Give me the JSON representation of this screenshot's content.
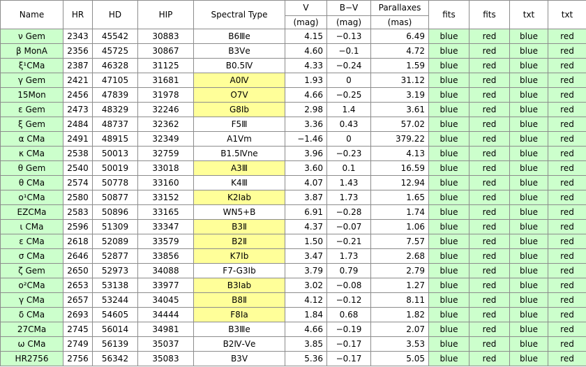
{
  "table": {
    "headers": [
      "Name",
      "HR",
      "HD",
      "HIP",
      "Spectral Type",
      "V",
      "B−V",
      "Parallaxes",
      "fits",
      "fits",
      "txt",
      "txt"
    ],
    "units": [
      "(mag)",
      "(mag)",
      "(mas)"
    ],
    "rows": [
      {
        "name": "ν Gem",
        "hr": "2343",
        "hd": "45542",
        "hip": "30883",
        "sp": "B6Ⅲe",
        "v": "4.15",
        "bv": "−0.13",
        "plx": "6.49",
        "c1": "blue",
        "c2": "red",
        "c3": "blue",
        "c4": "red",
        "hl": false
      },
      {
        "name": "β MonA",
        "hr": "2356",
        "hd": "45725",
        "hip": "30867",
        "sp": "B3Ⅴe",
        "v": "4.60",
        "bv": "−0.1",
        "plx": "4.72",
        "c1": "blue",
        "c2": "red",
        "c3": "blue",
        "c4": "red",
        "hl": false
      },
      {
        "name": "ξ¹CMa",
        "hr": "2387",
        "hd": "46328",
        "hip": "31125",
        "sp": "B0.5Ⅳ",
        "v": "4.33",
        "bv": "−0.24",
        "plx": "1.59",
        "c1": "blue",
        "c2": "red",
        "c3": "blue",
        "c4": "red",
        "hl": false
      },
      {
        "name": "γ Gem",
        "hr": "2421",
        "hd": "47105",
        "hip": "31681",
        "sp": "A0Ⅳ",
        "v": "1.93",
        "bv": "0",
        "plx": "31.12",
        "c1": "blue",
        "c2": "red",
        "c3": "blue",
        "c4": "red",
        "hl": true
      },
      {
        "name": "15Mon",
        "hr": "2456",
        "hd": "47839",
        "hip": "31978",
        "sp": "O7Ⅴ",
        "v": "4.66",
        "bv": "−0.25",
        "plx": "3.19",
        "c1": "blue",
        "c2": "red",
        "c3": "blue",
        "c4": "red",
        "hl": true
      },
      {
        "name": "ε Gem",
        "hr": "2473",
        "hd": "48329",
        "hip": "32246",
        "sp": "G8Ⅰb",
        "v": "2.98",
        "bv": "1.4",
        "plx": "3.61",
        "c1": "blue",
        "c2": "red",
        "c3": "blue",
        "c4": "red",
        "hl": true
      },
      {
        "name": "ξ Gem",
        "hr": "2484",
        "hd": "48737",
        "hip": "32362",
        "sp": "F5Ⅲ",
        "v": "3.36",
        "bv": "0.43",
        "plx": "57.02",
        "c1": "blue",
        "c2": "red",
        "c3": "blue",
        "c4": "red",
        "hl": false
      },
      {
        "name": "α CMa",
        "hr": "2491",
        "hd": "48915",
        "hip": "32349",
        "sp": "A1Ⅴm",
        "v": "−1.46",
        "bv": "0",
        "plx": "379.22",
        "c1": "blue",
        "c2": "red",
        "c3": "blue",
        "c4": "red",
        "hl": false
      },
      {
        "name": "κ CMa",
        "hr": "2538",
        "hd": "50013",
        "hip": "32759",
        "sp": "B1.5Ⅳne",
        "v": "3.96",
        "bv": "−0.23",
        "plx": "4.13",
        "c1": "blue",
        "c2": "red",
        "c3": "blue",
        "c4": "red",
        "hl": false
      },
      {
        "name": "θ Gem",
        "hr": "2540",
        "hd": "50019",
        "hip": "33018",
        "sp": "A3Ⅲ",
        "v": "3.60",
        "bv": "0.1",
        "plx": "16.59",
        "c1": "blue",
        "c2": "red",
        "c3": "blue",
        "c4": "red",
        "hl": true
      },
      {
        "name": "θ CMa",
        "hr": "2574",
        "hd": "50778",
        "hip": "33160",
        "sp": "K4Ⅲ",
        "v": "4.07",
        "bv": "1.43",
        "plx": "12.94",
        "c1": "blue",
        "c2": "red",
        "c3": "blue",
        "c4": "red",
        "hl": false
      },
      {
        "name": "ο¹CMa",
        "hr": "2580",
        "hd": "50877",
        "hip": "33152",
        "sp": "K2Ⅰab",
        "v": "3.87",
        "bv": "1.73",
        "plx": "1.65",
        "c1": "blue",
        "c2": "red",
        "c3": "blue",
        "c4": "red",
        "hl": true
      },
      {
        "name": "EZCMa",
        "hr": "2583",
        "hd": "50896",
        "hip": "33165",
        "sp": "WN5+B",
        "v": "6.91",
        "bv": "−0.28",
        "plx": "1.74",
        "c1": "blue",
        "c2": "red",
        "c3": "blue",
        "c4": "red",
        "hl": false
      },
      {
        "name": "ι CMa",
        "hr": "2596",
        "hd": "51309",
        "hip": "33347",
        "sp": "B3Ⅱ",
        "v": "4.37",
        "bv": "−0.07",
        "plx": "1.06",
        "c1": "blue",
        "c2": "red",
        "c3": "blue",
        "c4": "red",
        "hl": true
      },
      {
        "name": "ε CMa",
        "hr": "2618",
        "hd": "52089",
        "hip": "33579",
        "sp": "B2Ⅱ",
        "v": "1.50",
        "bv": "−0.21",
        "plx": "7.57",
        "c1": "blue",
        "c2": "red",
        "c3": "blue",
        "c4": "red",
        "hl": true
      },
      {
        "name": "σ CMa",
        "hr": "2646",
        "hd": "52877",
        "hip": "33856",
        "sp": "K7Ⅰb",
        "v": "3.47",
        "bv": "1.73",
        "plx": "2.68",
        "c1": "blue",
        "c2": "red",
        "c3": "blue",
        "c4": "red",
        "hl": true
      },
      {
        "name": "ζ Gem",
        "hr": "2650",
        "hd": "52973",
        "hip": "34088",
        "sp": "F7-G3Ⅰb",
        "v": "3.79",
        "bv": "0.79",
        "plx": "2.79",
        "c1": "blue",
        "c2": "red",
        "c3": "blue",
        "c4": "red",
        "hl": false
      },
      {
        "name": "ο²CMa",
        "hr": "2653",
        "hd": "53138",
        "hip": "33977",
        "sp": "B3Ⅰab",
        "v": "3.02",
        "bv": "−0.08",
        "plx": "1.27",
        "c1": "blue",
        "c2": "red",
        "c3": "blue",
        "c4": "red",
        "hl": true
      },
      {
        "name": "γ CMa",
        "hr": "2657",
        "hd": "53244",
        "hip": "34045",
        "sp": "B8Ⅱ",
        "v": "4.12",
        "bv": "−0.12",
        "plx": "8.11",
        "c1": "blue",
        "c2": "red",
        "c3": "blue",
        "c4": "red",
        "hl": true
      },
      {
        "name": "δ CMa",
        "hr": "2693",
        "hd": "54605",
        "hip": "34444",
        "sp": "F8Ⅰa",
        "v": "1.84",
        "bv": "0.68",
        "plx": "1.82",
        "c1": "blue",
        "c2": "red",
        "c3": "blue",
        "c4": "red",
        "hl": true
      },
      {
        "name": "27CMa",
        "hr": "2745",
        "hd": "56014",
        "hip": "34981",
        "sp": "B3Ⅲe",
        "v": "4.66",
        "bv": "−0.19",
        "plx": "2.07",
        "c1": "blue",
        "c2": "red",
        "c3": "blue",
        "c4": "red",
        "hl": false
      },
      {
        "name": "ω CMa",
        "hr": "2749",
        "hd": "56139",
        "hip": "35037",
        "sp": "B2Ⅳ-Ⅴe",
        "v": "3.85",
        "bv": "−0.17",
        "plx": "3.53",
        "c1": "blue",
        "c2": "red",
        "c3": "blue",
        "c4": "red",
        "hl": false
      },
      {
        "name": "HR2756",
        "hr": "2756",
        "hd": "56342",
        "hip": "35083",
        "sp": "B3Ⅴ",
        "v": "5.36",
        "bv": "−0.17",
        "plx": "5.05",
        "c1": "blue",
        "c2": "red",
        "c3": "blue",
        "c4": "red",
        "hl": false
      }
    ]
  },
  "colors": {
    "green_cell": "#ccffcc",
    "yellow_highlight": "#ffff99",
    "grid": "#8c8c8c"
  }
}
